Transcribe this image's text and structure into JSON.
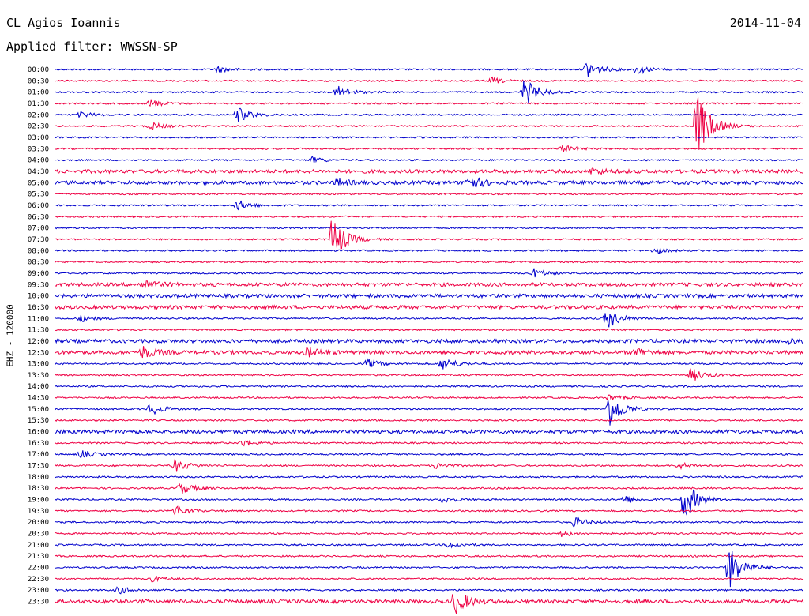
{
  "header": {
    "station": "CL Agios Ioannis",
    "filter": "Applied filter: WWSSN-SP",
    "date": "2014-11-04",
    "channel": "EHZ - 120000"
  },
  "colors": {
    "odd": "#0000cc",
    "even": "#ee0044"
  },
  "chart_data": {
    "type": "line",
    "title": "CL Agios Ioannis",
    "subtitle": "Applied filter: WWSSN-SP",
    "ylabel": "EHZ - 120000",
    "tick_labels": [
      "00:00",
      "00:30",
      "01:00",
      "01:30",
      "02:00",
      "02:30",
      "03:00",
      "03:30",
      "04:00",
      "04:30",
      "05:00",
      "05:30",
      "06:00",
      "06:30",
      "07:00",
      "07:30",
      "08:00",
      "08:30",
      "09:00",
      "09:30",
      "10:00",
      "10:30",
      "11:00",
      "11:30",
      "12:00",
      "12:30",
      "13:00",
      "13:30",
      "14:00",
      "14:30",
      "15:00",
      "15:30",
      "16:00",
      "16:30",
      "17:00",
      "17:30",
      "18:00",
      "18:30",
      "19:00",
      "19:30",
      "20:00",
      "20:30",
      "21:00",
      "21:30",
      "22:00",
      "22:30",
      "23:00",
      "23:30"
    ],
    "minutes_per_line": 30,
    "events": [
      {
        "row": 0,
        "minute": 6.5,
        "amp": 4
      },
      {
        "row": 0,
        "minute": 21.3,
        "amp": 12
      },
      {
        "row": 0,
        "minute": 23.3,
        "amp": 6
      },
      {
        "row": 1,
        "minute": 17.5,
        "amp": 4
      },
      {
        "row": 2,
        "minute": 11.3,
        "amp": 8
      },
      {
        "row": 2,
        "minute": 18.8,
        "amp": 18
      },
      {
        "row": 3,
        "minute": 3.8,
        "amp": 5
      },
      {
        "row": 4,
        "minute": 1,
        "amp": 4
      },
      {
        "row": 4,
        "minute": 7.3,
        "amp": 10
      },
      {
        "row": 5,
        "minute": 3.8,
        "amp": 5
      },
      {
        "row": 5,
        "minute": 25.7,
        "amp": 48
      },
      {
        "row": 7,
        "minute": 20.3,
        "amp": 5
      },
      {
        "row": 8,
        "minute": 10.3,
        "amp": 4
      },
      {
        "row": 9,
        "minute": 21.5,
        "amp": 4
      },
      {
        "row": 10,
        "minute": 11.3,
        "amp": 4
      },
      {
        "row": 10,
        "minute": 16.5,
        "amp": 10
      },
      {
        "row": 12,
        "minute": 7.3,
        "amp": 7
      },
      {
        "row": 15,
        "minute": 11.1,
        "amp": 30
      },
      {
        "row": 16,
        "minute": 24,
        "amp": 4
      },
      {
        "row": 18,
        "minute": 19.2,
        "amp": 6
      },
      {
        "row": 19,
        "minute": 3.5,
        "amp": 6
      },
      {
        "row": 22,
        "minute": 1,
        "amp": 4
      },
      {
        "row": 22,
        "minute": 22.1,
        "amp": 14
      },
      {
        "row": 24,
        "minute": 29.4,
        "amp": 4
      },
      {
        "row": 25,
        "minute": 3.5,
        "amp": 8
      },
      {
        "row": 25,
        "minute": 10.1,
        "amp": 6
      },
      {
        "row": 25,
        "minute": 23.3,
        "amp": 6
      },
      {
        "row": 26,
        "minute": 12.5,
        "amp": 6
      },
      {
        "row": 26,
        "minute": 15.5,
        "amp": 9
      },
      {
        "row": 27,
        "minute": 25.5,
        "amp": 9
      },
      {
        "row": 29,
        "minute": 22.2,
        "amp": 4
      },
      {
        "row": 30,
        "minute": 3.8,
        "amp": 8
      },
      {
        "row": 30,
        "minute": 22.2,
        "amp": 24
      },
      {
        "row": 33,
        "minute": 7.5,
        "amp": 5
      },
      {
        "row": 34,
        "minute": 1,
        "amp": 5
      },
      {
        "row": 35,
        "minute": 4.8,
        "amp": 8
      },
      {
        "row": 35,
        "minute": 15.2,
        "amp": 4
      },
      {
        "row": 35,
        "minute": 25,
        "amp": 4
      },
      {
        "row": 37,
        "minute": 5,
        "amp": 8
      },
      {
        "row": 38,
        "minute": 15.5,
        "amp": 4
      },
      {
        "row": 38,
        "minute": 22.8,
        "amp": 6
      },
      {
        "row": 38,
        "minute": 25.2,
        "amp": 28
      },
      {
        "row": 39,
        "minute": 4.8,
        "amp": 7
      },
      {
        "row": 40,
        "minute": 20.8,
        "amp": 6
      },
      {
        "row": 41,
        "minute": 20.3,
        "amp": 4
      },
      {
        "row": 42,
        "minute": 15.8,
        "amp": 4
      },
      {
        "row": 44,
        "minute": 27,
        "amp": 30
      },
      {
        "row": 45,
        "minute": 3.8,
        "amp": 4
      },
      {
        "row": 46,
        "minute": 2.5,
        "amp": 5
      },
      {
        "row": 47,
        "minute": 16,
        "amp": 16
      }
    ],
    "background_noise_rows": [
      9,
      10,
      19,
      20,
      21,
      24,
      25,
      32,
      47
    ]
  }
}
